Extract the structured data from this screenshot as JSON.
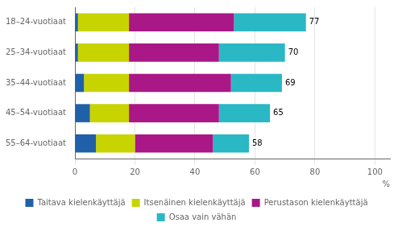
{
  "chart_data": {
    "type": "bar",
    "orientation": "horizontal",
    "stacked": true,
    "categories": [
      "18–24-vuotiaat",
      "25–34-vuotiaat",
      "35–44-vuotiaat",
      "45–54-vuotiaat",
      "55–64-vuotiaat"
    ],
    "series": [
      {
        "name": "Taitava kielenkäyttäjä",
        "color": "#2060a8",
        "values": [
          1,
          1,
          3,
          5,
          7
        ]
      },
      {
        "name": "Itsenäinen kielenkäyttäjä",
        "color": "#c8d400",
        "values": [
          17,
          17,
          15,
          13,
          13
        ]
      },
      {
        "name": "Perustason kielenkäyttäjä",
        "color": "#aa1787",
        "values": [
          35,
          30,
          34,
          30,
          26
        ]
      },
      {
        "name": "Osaa vain vähän",
        "color": "#2ab8c5",
        "values": [
          24,
          22,
          17,
          17,
          12
        ]
      }
    ],
    "totals": [
      77,
      70,
      69,
      65,
      58
    ],
    "xlabel": "%",
    "xlim": [
      0,
      105
    ],
    "xticks": [
      0,
      20,
      40,
      60,
      80,
      100
    ],
    "grid": true,
    "legend": "bottom"
  }
}
